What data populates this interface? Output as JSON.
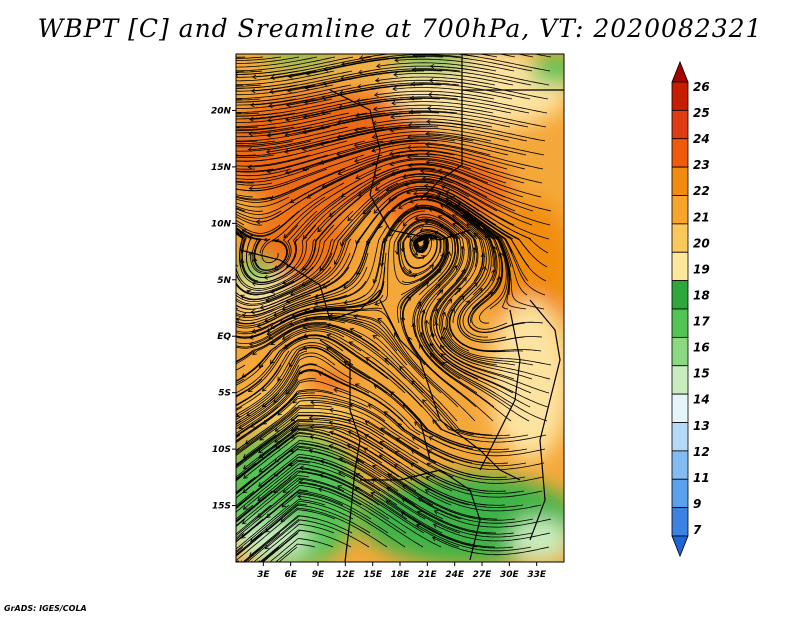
{
  "title": "WBPT [C] and Sreamline at 700hPa, VT: 2020082321",
  "credit": "GrADS: IGES/COLA",
  "map": {
    "variable": "Wet-bulb potential temperature",
    "units": "C",
    "level": "700hPa",
    "valid_time": "2020082321",
    "lat_range": [
      -20,
      25
    ],
    "lon_range": [
      0,
      36
    ],
    "lat_labels": [
      "20N",
      "15N",
      "10N",
      "5N",
      "EQ",
      "5S",
      "10S",
      "15S"
    ],
    "lat_values": [
      20,
      15,
      10,
      5,
      0,
      -5,
      -10,
      -15
    ],
    "lon_labels": [
      "3E",
      "6E",
      "9E",
      "12E",
      "15E",
      "18E",
      "21E",
      "24E",
      "27E",
      "30E",
      "33E"
    ],
    "lon_values": [
      3,
      6,
      9,
      12,
      15,
      18,
      21,
      24,
      27,
      30,
      33
    ]
  },
  "colorbar": {
    "levels": [
      "26",
      "25",
      "24",
      "23",
      "22",
      "21",
      "20",
      "19",
      "18",
      "17",
      "16",
      "15",
      "14",
      "13",
      "12",
      "11",
      "9",
      "7"
    ],
    "colors": [
      "#a50000",
      "#c81e00",
      "#e03c14",
      "#ee5a0a",
      "#f28c10",
      "#f7a52c",
      "#fac85a",
      "#fde79a",
      "#2ea83a",
      "#52c454",
      "#8ad880",
      "#c8ecbe",
      "#e6f5f9",
      "#b4daf8",
      "#82bcf2",
      "#5aa0ec",
      "#3c82e2",
      "#1e64d6"
    ]
  }
}
